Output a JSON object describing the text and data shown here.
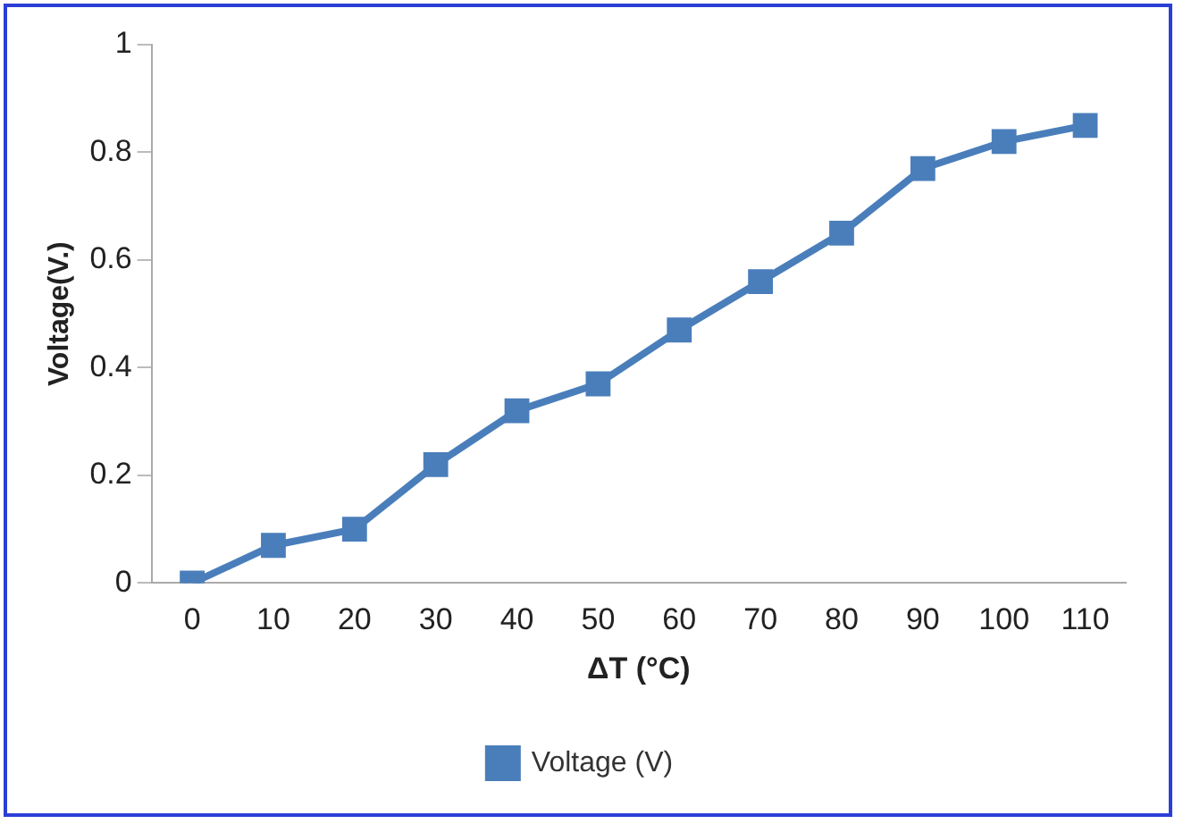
{
  "chart_data": {
    "type": "line",
    "xlabel": "ΔT (°C)",
    "ylabel": "Voltage(V.)",
    "categories": [
      "0",
      "10",
      "20",
      "30",
      "40",
      "50",
      "60",
      "70",
      "80",
      "90",
      "100",
      "110"
    ],
    "series": [
      {
        "name": "Voltage (V)",
        "color": "#4a7ebb",
        "values": [
          0,
          0.07,
          0.1,
          0.22,
          0.32,
          0.37,
          0.47,
          0.56,
          0.65,
          0.77,
          0.82,
          0.85
        ]
      }
    ],
    "ylim": [
      0,
      1
    ],
    "yticks": [
      0,
      0.2,
      0.4,
      0.6,
      0.8,
      1
    ],
    "grid": false,
    "legend": "bottom",
    "marker": "square",
    "line_style": "solid"
  }
}
